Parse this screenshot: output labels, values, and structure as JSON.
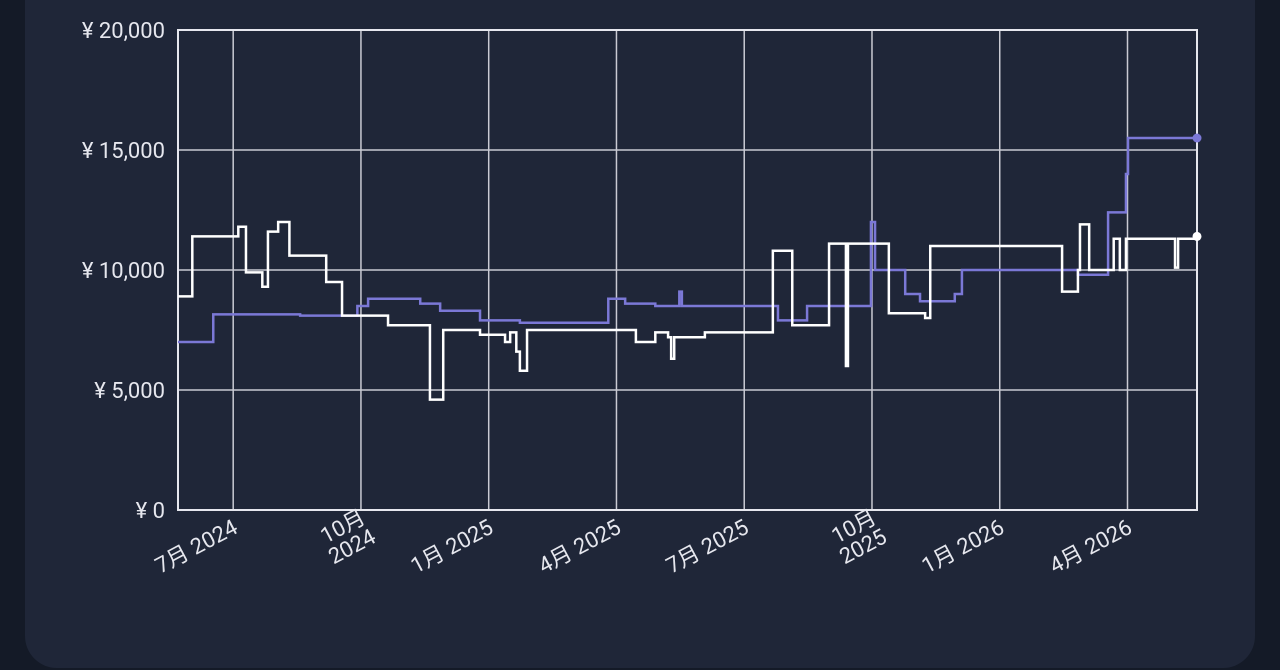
{
  "chart_data": {
    "type": "line",
    "step": true,
    "grid": true,
    "xlim": [
      2024.392,
      2026.386
    ],
    "ylim": [
      0,
      20000
    ],
    "xticks": [
      {
        "value": 2024.5,
        "label": "7月 2024"
      },
      {
        "value": 2024.75,
        "label": "10月\n2024"
      },
      {
        "value": 2025.0,
        "label": "1月 2025"
      },
      {
        "value": 2025.25,
        "label": "4月 2025"
      },
      {
        "value": 2025.5,
        "label": "7月 2025"
      },
      {
        "value": 2025.75,
        "label": "10月\n2025"
      },
      {
        "value": 2026.0,
        "label": "1月 2026"
      },
      {
        "value": 2026.25,
        "label": "4月 2026"
      }
    ],
    "yticks": [
      {
        "value": 0,
        "label": "¥ 0"
      },
      {
        "value": 5000,
        "label": "¥ 5,000"
      },
      {
        "value": 10000,
        "label": "¥ 10,000"
      },
      {
        "value": 15000,
        "label": "¥ 15,000"
      },
      {
        "value": 20000,
        "label": "¥ 20,000"
      }
    ],
    "series": [
      {
        "color": "#7b78d6",
        "x": [
          2024.392,
          2024.461,
          2024.631,
          2024.743,
          2024.764,
          2024.866,
          2024.905,
          2024.983,
          2025.061,
          2025.234,
          2025.267,
          2025.326,
          2025.373,
          2025.378,
          2025.566,
          2025.623,
          2025.748,
          2025.756,
          2025.815,
          2025.844,
          2025.912,
          2025.926,
          2026.153,
          2026.212,
          2026.247,
          2026.251,
          2026.386
        ],
        "values": [
          7000,
          8150,
          8100,
          8500,
          8800,
          8600,
          8300,
          7900,
          7800,
          8800,
          8600,
          8500,
          9100,
          8500,
          7900,
          8500,
          12000,
          10000,
          9000,
          8700,
          9000,
          10000,
          9800,
          12400,
          14000,
          15500,
          15500
        ]
      },
      {
        "color": "#ffffff",
        "x": [
          2024.392,
          2024.42,
          2024.51,
          2024.525,
          2024.557,
          2024.568,
          2024.588,
          2024.61,
          2024.682,
          2024.713,
          2024.803,
          2024.885,
          2024.911,
          2024.983,
          2025.032,
          2025.042,
          2025.054,
          2025.061,
          2025.075,
          2025.288,
          2025.326,
          2025.351,
          2025.357,
          2025.363,
          2025.423,
          2025.556,
          2025.594,
          2025.666,
          2025.699,
          2025.703,
          2025.783,
          2025.854,
          2025.864,
          2026.122,
          2026.153,
          2026.157,
          2026.175,
          2026.223,
          2026.235,
          2026.247,
          2026.343,
          2026.349,
          2026.386
        ],
        "values": [
          8900,
          11400,
          11800,
          9900,
          9300,
          11600,
          12000,
          10600,
          9500,
          8100,
          7700,
          4600,
          7500,
          7300,
          7000,
          7400,
          6600,
          5800,
          7500,
          7000,
          7400,
          7200,
          6300,
          7200,
          7400,
          10800,
          7700,
          11100,
          6000,
          11100,
          8200,
          8000,
          11000,
          9100,
          10000,
          11900,
          10000,
          11300,
          10000,
          11300,
          10100,
          11300,
          11400
        ]
      }
    ]
  }
}
